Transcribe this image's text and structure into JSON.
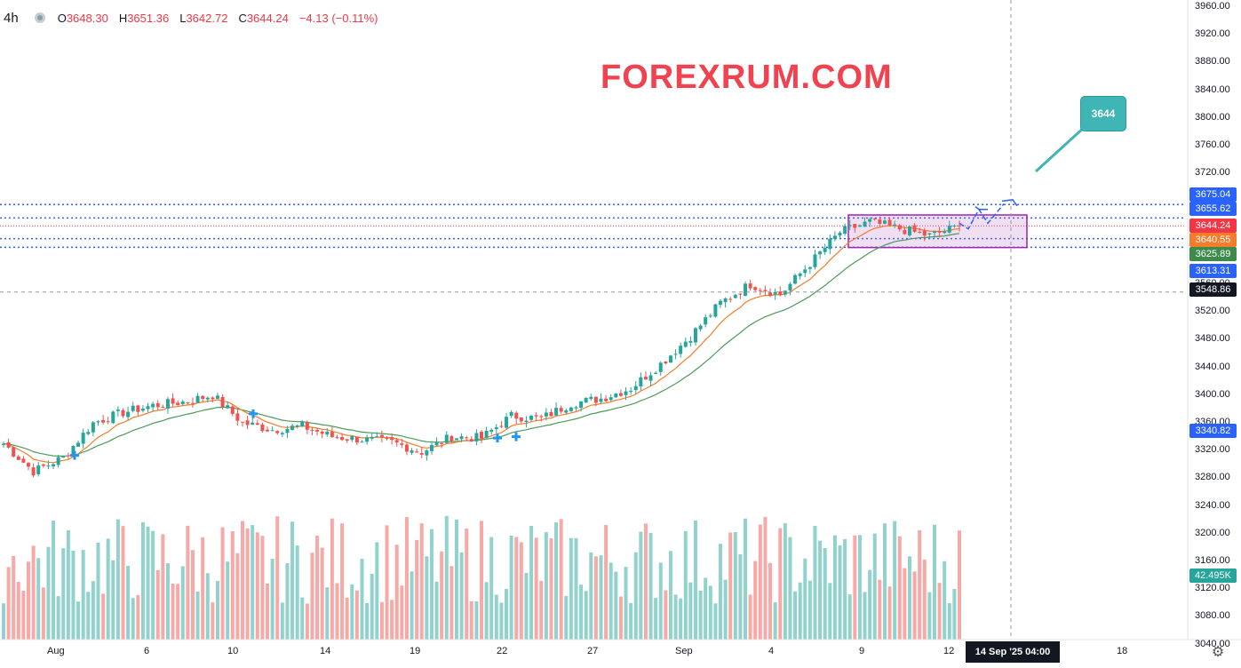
{
  "header": {
    "interval": "4h",
    "open_label": "O",
    "open": "3648.30",
    "high_label": "H",
    "high": "3651.36",
    "low_label": "L",
    "low": "3642.72",
    "close_label": "C",
    "close": "3644.24",
    "change": "−4.13 (−0.11%)"
  },
  "watermark": "FOREXRUM.COM",
  "callout": "3644",
  "crosshair_time": "14 Sep '25   04:00",
  "colors": {
    "up": "#26a69a",
    "down": "#ef5350",
    "ema_fast": "#f57c2b",
    "ema_slow": "#4c9a5a",
    "box": "#9c27b0",
    "arrow": "#2962ff",
    "callout": "#3fb5b5"
  },
  "chart_data": {
    "type": "candlestick",
    "interval": "4h",
    "y_ticks": [
      "3960.00",
      "3920.00",
      "3880.00",
      "3840.00",
      "3800.00",
      "3760.00",
      "3720.00",
      "3680.00",
      "3640.00",
      "3600.00",
      "3560.00",
      "3520.00",
      "3480.00",
      "3440.00",
      "3400.00",
      "3360.00",
      "3320.00",
      "3280.00",
      "3240.00",
      "3200.00",
      "3160.00",
      "3120.00",
      "3080.00",
      "3040.00"
    ],
    "x_ticks": [
      "Aug",
      "6",
      "10",
      "14",
      "19",
      "22",
      "27",
      "Sep",
      "4",
      "9",
      "12",
      "18"
    ],
    "price_labels": [
      {
        "text": "3675.04",
        "value": 3675.04,
        "color": "#2962ff"
      },
      {
        "text": "3655.62",
        "value": 3655.62,
        "color": "#2962ff"
      },
      {
        "text": "3644.24",
        "value": 3644.24,
        "color": "#f23645"
      },
      {
        "text": "3640.55",
        "value": 3640.55,
        "color": "#f57c2b"
      },
      {
        "text": "3625.89",
        "value": 3625.89,
        "color": "#3d8a4a"
      },
      {
        "text": "3613.31",
        "value": 3613.31,
        "color": "#2962ff"
      },
      {
        "text": "3548.86",
        "value": 3548.86,
        "color": "#131722"
      },
      {
        "text": "3340.82",
        "value": 3340.82,
        "color": "#2962ff"
      },
      {
        "text": "42.495K",
        "value": null,
        "color": "#26a69a"
      }
    ],
    "ohlc_last": {
      "open": 3648.3,
      "high": 3651.36,
      "low": 3642.72,
      "close": 3644.24
    },
    "consolidation_range": [
      3613,
      3660
    ],
    "horizontal_levels": [
      3675.04,
      3655.62,
      3625.89,
      3613.31
    ],
    "crosshair_price": 3548.86,
    "close_path": [
      {
        "d": "Jul 31",
        "close": 3330
      },
      {
        "d": "Aug 1",
        "close": 3290
      },
      {
        "d": "Aug 1b",
        "close": 3310
      },
      {
        "d": "Aug 4",
        "close": 3360
      },
      {
        "d": "Aug 5",
        "close": 3375
      },
      {
        "d": "Aug 6",
        "close": 3385
      },
      {
        "d": "Aug 7",
        "close": 3390
      },
      {
        "d": "Aug 8",
        "close": 3400
      },
      {
        "d": "Aug 11",
        "close": 3360
      },
      {
        "d": "Aug 12",
        "close": 3350
      },
      {
        "d": "Aug 13",
        "close": 3355
      },
      {
        "d": "Aug 14",
        "close": 3340
      },
      {
        "d": "Aug 15",
        "close": 3336
      },
      {
        "d": "Aug 18",
        "close": 3332
      },
      {
        "d": "Aug 19",
        "close": 3318
      },
      {
        "d": "Aug 20",
        "close": 3340
      },
      {
        "d": "Aug 21",
        "close": 3338
      },
      {
        "d": "Aug 22",
        "close": 3370
      },
      {
        "d": "Aug 25",
        "close": 3366
      },
      {
        "d": "Aug 26",
        "close": 3388
      },
      {
        "d": "Aug 27",
        "close": 3395
      },
      {
        "d": "Aug 28",
        "close": 3410
      },
      {
        "d": "Aug 29",
        "close": 3445
      },
      {
        "d": "Sep 1",
        "close": 3485
      },
      {
        "d": "Sep 2",
        "close": 3533
      },
      {
        "d": "Sep 3",
        "close": 3560
      },
      {
        "d": "Sep 4",
        "close": 3545
      },
      {
        "d": "Sep 5",
        "close": 3590
      },
      {
        "d": "Sep 8",
        "close": 3635
      },
      {
        "d": "Sep 9",
        "close": 3650
      },
      {
        "d": "Sep 10",
        "close": 3640
      },
      {
        "d": "Sep 11",
        "close": 3630
      },
      {
        "d": "Sep 12",
        "close": 3644
      }
    ]
  }
}
